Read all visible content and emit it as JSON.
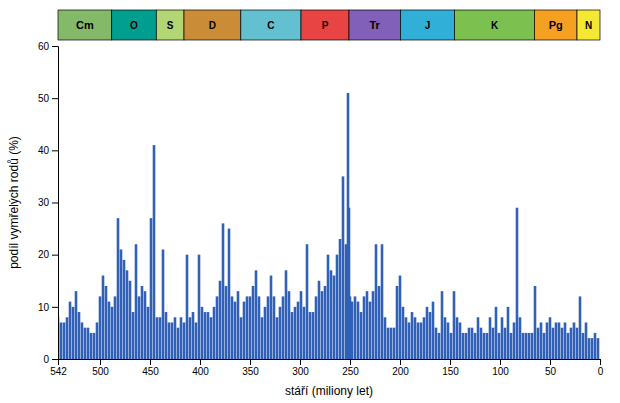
{
  "chart_data": {
    "type": "bar",
    "xlabel": "stáří (miliony let)",
    "ylabel": "podíl vymřelých rodů (%)",
    "color": "#3060b8",
    "grid": false,
    "xlim": [
      542,
      0
    ],
    "ylim": [
      0,
      60
    ],
    "xticks": [
      542,
      500,
      450,
      400,
      350,
      300,
      250,
      200,
      150,
      100,
      50,
      0
    ],
    "yticks": [
      0,
      10,
      20,
      30,
      40,
      50,
      60
    ],
    "x": [
      542,
      539,
      536,
      533,
      530,
      527,
      524,
      521,
      518,
      515,
      512,
      509,
      506,
      503,
      500,
      497,
      494,
      491,
      488,
      485,
      482,
      479,
      476,
      473,
      470,
      467,
      464,
      461,
      458,
      455,
      452,
      449,
      446,
      443,
      440,
      437,
      434,
      431,
      428,
      425,
      422,
      419,
      416,
      413,
      410,
      407,
      404,
      401,
      398,
      395,
      392,
      389,
      386,
      383,
      380,
      377,
      374,
      371,
      368,
      365,
      362,
      359,
      356,
      353,
      350,
      347,
      344,
      341,
      338,
      335,
      332,
      329,
      326,
      323,
      320,
      317,
      314,
      311,
      308,
      305,
      302,
      299,
      296,
      293,
      290,
      287,
      284,
      281,
      278,
      275,
      272,
      269,
      266,
      263,
      260,
      257,
      254,
      252,
      251,
      250,
      248,
      245,
      242,
      239,
      236,
      233,
      230,
      227,
      224,
      221,
      218,
      215,
      212,
      209,
      206,
      203,
      200,
      197,
      194,
      191,
      188,
      185,
      182,
      179,
      176,
      173,
      170,
      167,
      164,
      161,
      158,
      155,
      152,
      149,
      146,
      143,
      140,
      137,
      134,
      131,
      128,
      125,
      122,
      119,
      116,
      113,
      110,
      107,
      104,
      101,
      98,
      95,
      92,
      89,
      86,
      83,
      80,
      77,
      74,
      71,
      68,
      65,
      62,
      59,
      56,
      53,
      50,
      47,
      44,
      41,
      38,
      35,
      32,
      29,
      26,
      23,
      20,
      17,
      14,
      11,
      8,
      5,
      2
    ],
    "values": [
      8,
      7,
      7,
      8,
      11,
      10,
      13,
      9,
      7,
      6,
      6,
      5,
      5,
      7,
      12,
      16,
      14,
      11,
      10,
      12,
      27,
      21,
      19,
      17,
      15,
      9,
      22,
      12,
      14,
      13,
      10,
      27,
      41,
      8,
      8,
      21,
      9,
      7,
      7,
      8,
      6,
      8,
      7,
      20,
      8,
      9,
      7,
      20,
      10,
      9,
      9,
      8,
      10,
      12,
      15,
      26,
      14,
      25,
      12,
      11,
      13,
      8,
      11,
      12,
      12,
      14,
      17,
      12,
      8,
      10,
      12,
      16,
      12,
      8,
      10,
      12,
      17,
      13,
      9,
      10,
      11,
      13,
      10,
      22,
      9,
      9,
      12,
      15,
      13,
      14,
      20,
      17,
      16,
      20,
      23,
      35,
      22,
      51,
      29,
      12,
      11,
      12,
      11,
      9,
      12,
      13,
      11,
      13,
      22,
      14,
      22,
      8,
      6,
      6,
      6,
      14,
      16,
      10,
      8,
      7,
      9,
      8,
      7,
      7,
      8,
      10,
      9,
      11,
      6,
      5,
      13,
      8,
      7,
      5,
      13,
      8,
      7,
      5,
      5,
      6,
      6,
      5,
      8,
      6,
      5,
      5,
      8,
      6,
      10,
      5,
      8,
      6,
      10,
      5,
      7,
      29,
      8,
      5,
      5,
      5,
      5,
      14,
      6,
      7,
      5,
      7,
      8,
      6,
      7,
      7,
      6,
      7,
      5,
      6,
      7,
      6,
      12,
      5,
      7,
      4,
      4,
      5,
      4
    ],
    "periods": [
      {
        "name": "Cm",
        "start": 542,
        "end": 488.3,
        "color": "#84b96a"
      },
      {
        "name": "O",
        "start": 488.3,
        "end": 443.7,
        "color": "#009e8e"
      },
      {
        "name": "S",
        "start": 443.7,
        "end": 416.0,
        "color": "#b3d574"
      },
      {
        "name": "D",
        "start": 416.0,
        "end": 359.2,
        "color": "#cb8c37"
      },
      {
        "name": "C",
        "start": 359.2,
        "end": 299.0,
        "color": "#62c0d0"
      },
      {
        "name": "P",
        "start": 299.0,
        "end": 251.0,
        "color": "#e84444"
      },
      {
        "name": "Tr",
        "start": 251.0,
        "end": 199.6,
        "color": "#8060b8"
      },
      {
        "name": "J",
        "start": 199.6,
        "end": 145.5,
        "color": "#30b0d8"
      },
      {
        "name": "K",
        "start": 145.5,
        "end": 65.5,
        "color": "#7cc050"
      },
      {
        "name": "Pg",
        "start": 65.5,
        "end": 23.0,
        "color": "#f5a020"
      },
      {
        "name": "N",
        "start": 23.0,
        "end": 0.0,
        "color": "#f5e832"
      }
    ]
  }
}
